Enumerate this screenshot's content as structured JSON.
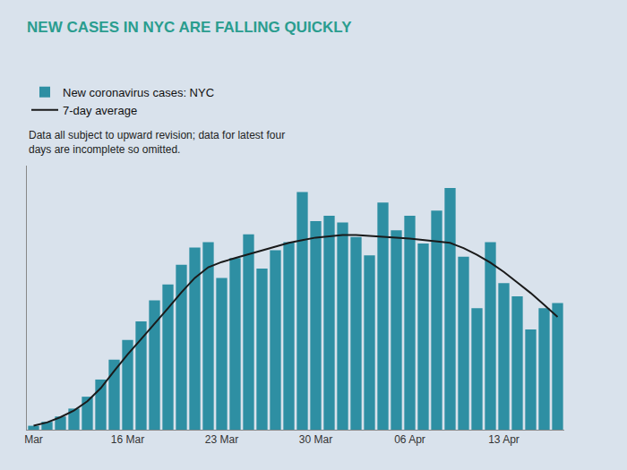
{
  "chart_data": {
    "type": "bar",
    "title": "NEW CASES IN NYC ARE FALLING QUICKLY",
    "subtitle": "Data all subject to upward revision; data for latest four\ndays are incomplete so omitted.",
    "categories": [
      "Mar",
      null,
      null,
      null,
      null,
      null,
      null,
      "16 Mar",
      null,
      null,
      null,
      null,
      null,
      null,
      "23 Mar",
      null,
      null,
      null,
      null,
      null,
      null,
      "30 Mar",
      null,
      null,
      null,
      null,
      null,
      null,
      "06 Apr",
      null,
      null,
      null,
      null,
      null,
      null,
      "13 Apr",
      null,
      null,
      null,
      null
    ],
    "series": [
      {
        "name": "New coronavirus cases: NYC",
        "type": "bar",
        "color": "#2e8fa3",
        "values": [
          30,
          60,
          100,
          160,
          250,
          380,
          530,
          680,
          820,
          980,
          1100,
          1250,
          1380,
          1420,
          1150,
          1300,
          1480,
          1220,
          1360,
          1420,
          1800,
          1580,
          1620,
          1570,
          1460,
          1320,
          1720,
          1510,
          1620,
          1410,
          1660,
          1830,
          1310,
          920,
          1420,
          1110,
          1010,
          760,
          920,
          960
        ]
      },
      {
        "name": "7-day average",
        "type": "line",
        "color": "#1a1a1a",
        "values": [
          30,
          55,
          95,
          145,
          215,
          315,
          445,
          570,
          685,
          800,
          920,
          1040,
          1150,
          1230,
          1270,
          1300,
          1330,
          1355,
          1385,
          1415,
          1435,
          1455,
          1465,
          1475,
          1475,
          1470,
          1462,
          1455,
          1448,
          1438,
          1428,
          1415,
          1375,
          1325,
          1265,
          1195,
          1115,
          1035,
          945,
          855
        ]
      }
    ],
    "ylim": [
      0,
      2000
    ],
    "grid": false,
    "legend": "upper left",
    "tick_labels": "x"
  }
}
